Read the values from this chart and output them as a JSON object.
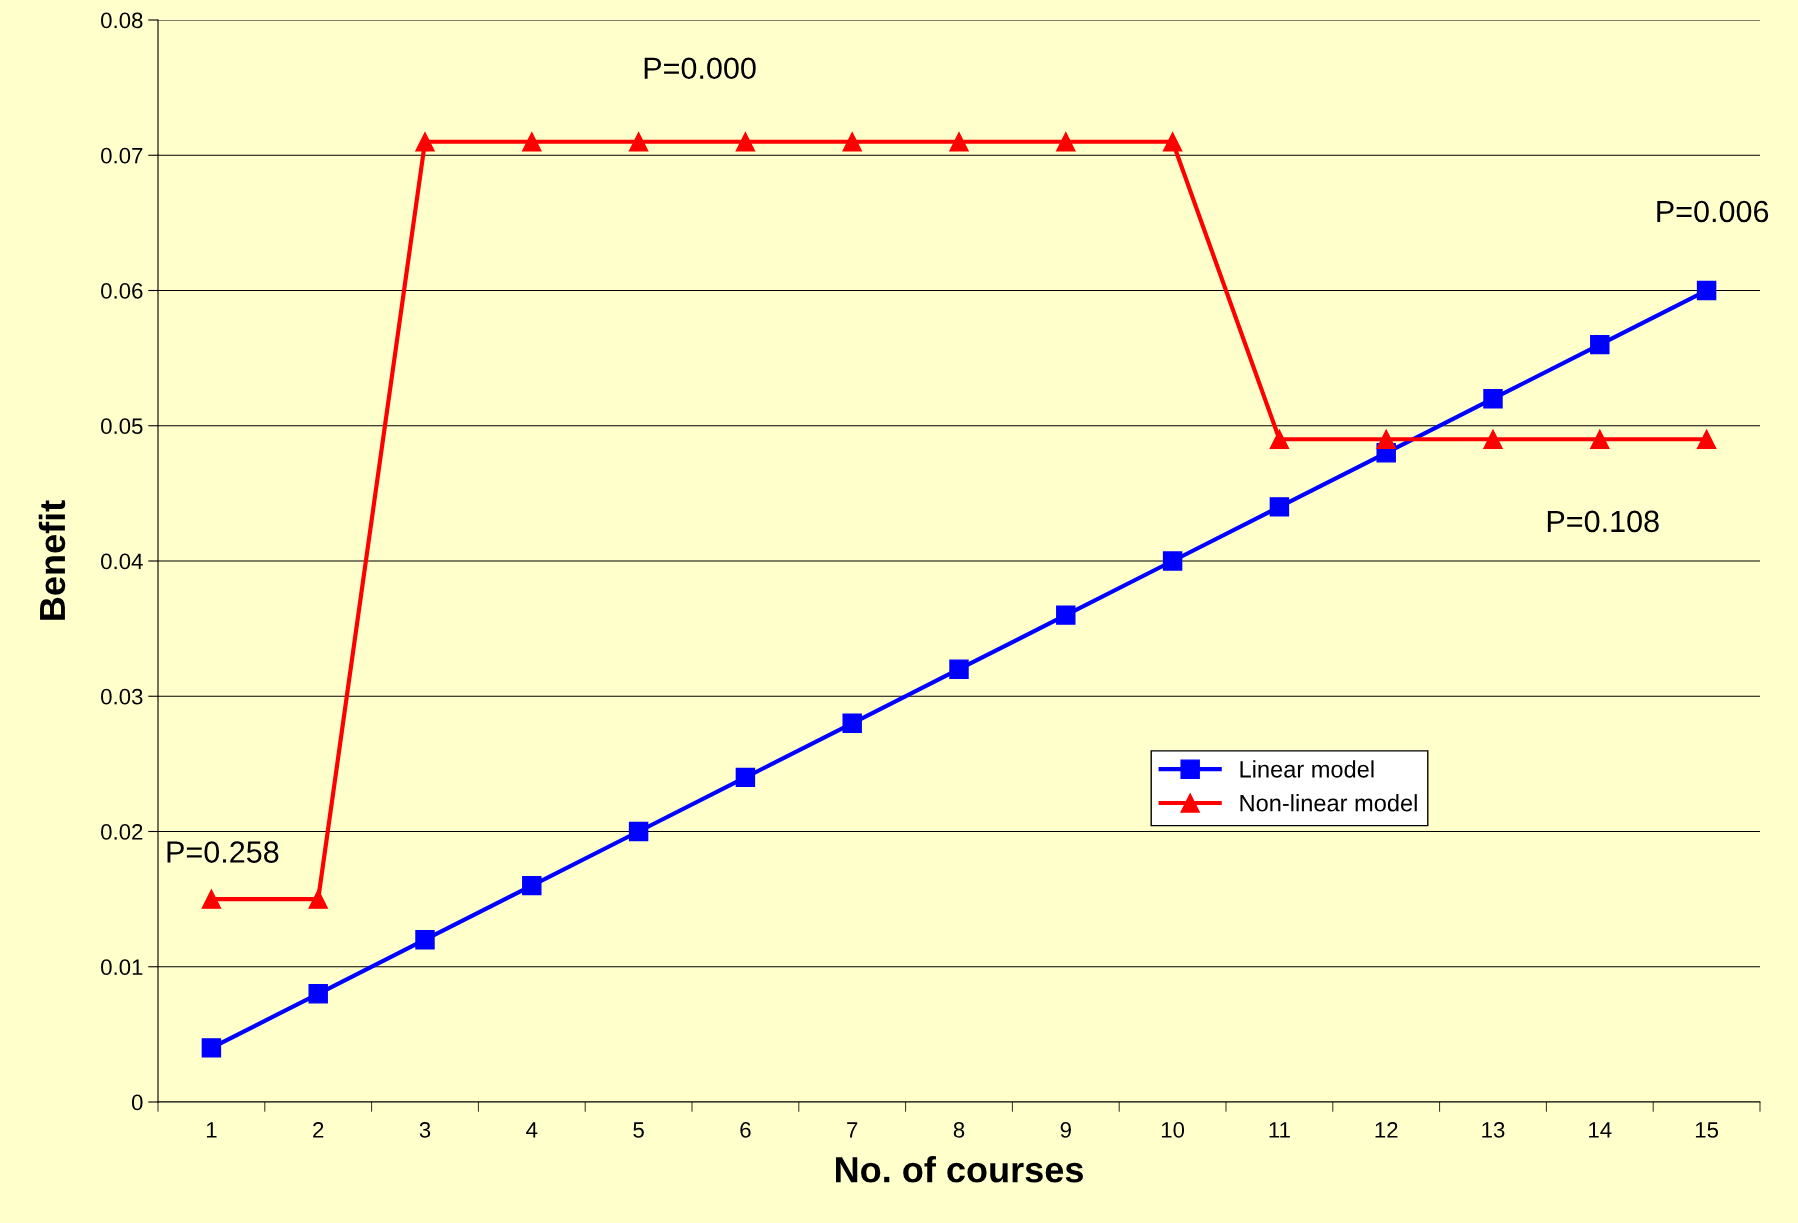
{
  "chart_data": {
    "type": "line",
    "xlabel": "No. of courses",
    "ylabel": "Benefit",
    "categories": [
      "1",
      "2",
      "3",
      "4",
      "5",
      "6",
      "7",
      "8",
      "9",
      "10",
      "11",
      "12",
      "13",
      "14",
      "15"
    ],
    "series": [
      {
        "name": "Linear model",
        "color": "#0000ff",
        "marker": "square",
        "values": [
          0.004,
          0.008,
          0.012,
          0.016,
          0.02,
          0.024,
          0.028,
          0.032,
          0.036,
          0.04,
          0.044,
          0.048,
          0.052,
          0.056,
          0.06
        ]
      },
      {
        "name": "Non-linear model",
        "color": "#ff0000",
        "marker": "triangle",
        "values": [
          0.015,
          0.015,
          0.071,
          0.071,
          0.071,
          0.071,
          0.071,
          0.071,
          0.071,
          0.071,
          0.049,
          0.049,
          0.049,
          0.049,
          0.049
        ]
      }
    ],
    "ylim": [
      0,
      0.08
    ],
    "yticks": [
      0,
      0.01,
      0.02,
      0.03,
      0.04,
      0.05,
      0.06,
      0.07,
      0.08
    ],
    "grid": "y",
    "legend": "right",
    "line_style": "solid",
    "annotations": [
      {
        "text": "P=0.258",
        "x": "2",
        "y": 0.015
      },
      {
        "text": "P=0.000",
        "x": "6",
        "y": 0.071
      },
      {
        "text": "P=0.006",
        "x": "15",
        "y": 0.06
      },
      {
        "text": "P=0.108",
        "x": "13",
        "y": 0.049
      }
    ]
  }
}
